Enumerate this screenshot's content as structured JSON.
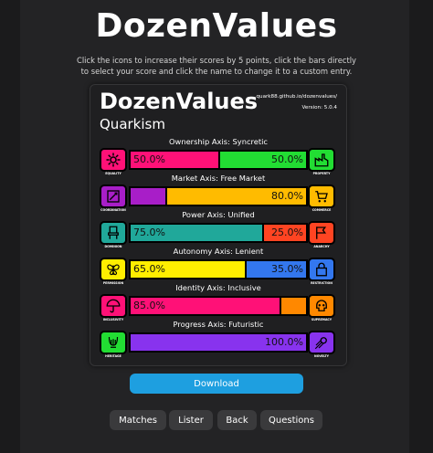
{
  "header": {
    "title": "DozenValues",
    "instructions": "Click the icons to increase their scores by 5 points, click the bars directly to select your score and click the name to change it to a custom entry."
  },
  "card": {
    "title": "DozenValues",
    "subtitle": "Quarkism",
    "url": "quark88.github.io/dozenvalues/",
    "version": "Version: 5.0.4"
  },
  "axes": [
    {
      "title": "Ownership Axis: Syncretic",
      "left": {
        "label": "EQUALITY",
        "icon": "gear-icon",
        "color": "#ff1177",
        "value": "50.0%",
        "percent": 50
      },
      "right": {
        "label": "PROPERTY",
        "icon": "factory-icon",
        "color": "#22dd33",
        "value": "50.0%",
        "percent": 50
      }
    },
    {
      "title": "Market Axis: Free Market",
      "left": {
        "label": "COORDINATION",
        "icon": "planning-icon",
        "color": "#a81ec8",
        "value": "",
        "percent": 20
      },
      "right": {
        "label": "COMMERCE",
        "icon": "shopping-cart-icon",
        "color": "#ffbb00",
        "value": "80.0%",
        "percent": 80
      }
    },
    {
      "title": "Power Axis: Unified",
      "left": {
        "label": "DOMINION",
        "icon": "throne-icon",
        "color": "#20a89a",
        "value": "75.0%",
        "percent": 75
      },
      "right": {
        "label": "ANARCHY",
        "icon": "flag-icon",
        "color": "#ff4422",
        "value": "25.0%",
        "percent": 25
      }
    },
    {
      "title": "Autonomy Axis: Lenient",
      "left": {
        "label": "PERMISSION",
        "icon": "butterfly-icon",
        "color": "#ffee00",
        "value": "65.0%",
        "percent": 65
      },
      "right": {
        "label": "RESTRICTION",
        "icon": "lock-icon",
        "color": "#3377ee",
        "value": "35.0%",
        "percent": 35
      }
    },
    {
      "title": "Identity Axis: Inclusive",
      "left": {
        "label": "INCLUSIVITY",
        "icon": "umbrella-icon",
        "color": "#ff1177",
        "value": "85.0%",
        "percent": 85
      },
      "right": {
        "label": "SUPREMACY",
        "icon": "skull-icon",
        "color": "#ff8800",
        "value": "",
        "percent": 15
      }
    },
    {
      "title": "Progress Axis: Futuristic",
      "left": {
        "label": "HERITAGE",
        "icon": "lyre-icon",
        "color": "#22dd33",
        "value": "",
        "percent": 0
      },
      "right": {
        "label": "NOVELTY",
        "icon": "comet-icon",
        "color": "#8833ee",
        "value": "100.0%",
        "percent": 100
      }
    }
  ],
  "buttons": {
    "download": "Download",
    "matches": "Matches",
    "lister": "Lister",
    "back": "Back",
    "questions": "Questions"
  }
}
